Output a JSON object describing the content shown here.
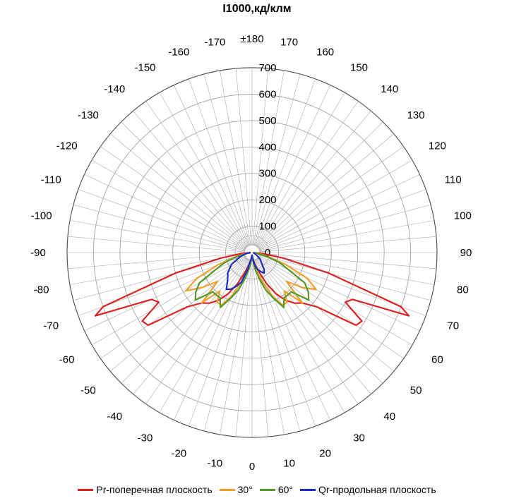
{
  "chart_data": {
    "type": "polar-line",
    "title": "I1000,кд/клм",
    "radial_axis": {
      "range": [
        0,
        700
      ],
      "ticks": [
        0,
        100,
        200,
        300,
        400,
        500,
        600,
        700
      ]
    },
    "angle_ticks": [
      "0",
      "10",
      "20",
      "30",
      "40",
      "50",
      "60",
      "70",
      "80",
      "90",
      "100",
      "110",
      "120",
      "130",
      "140",
      "150",
      "160",
      "170",
      "±180",
      "-170",
      "-160",
      "-150",
      "-140",
      "-130",
      "-120",
      "-110",
      "-100",
      "-90",
      "-80",
      "-70",
      "-60",
      "-50",
      "-40",
      "-30",
      "-20",
      "-10"
    ],
    "angle_tick_values": [
      0,
      10,
      20,
      30,
      40,
      50,
      60,
      70,
      80,
      90,
      100,
      110,
      120,
      130,
      140,
      150,
      160,
      170,
      180,
      -170,
      -160,
      -150,
      -140,
      -130,
      -120,
      -110,
      -100,
      -90,
      -80,
      -70,
      -60,
      -50,
      -40,
      -30,
      -20,
      -10
    ],
    "grid": true,
    "legend_position": "bottom",
    "series": [
      {
        "name": "Pr-поперечная плоскость",
        "color": "#dd2222",
        "angles": [
          -90,
          -85,
          -80,
          -75,
          -70,
          -68,
          -65,
          -62,
          -58,
          -55,
          -50,
          -45,
          -40,
          -35,
          -30,
          -25,
          -20,
          -15,
          -10,
          -5,
          0,
          5,
          10,
          15,
          20,
          25,
          30,
          35,
          40,
          45,
          50,
          55,
          58,
          62,
          65,
          68,
          70,
          75,
          80,
          85,
          90
        ],
        "values": [
          5,
          40,
          120,
          300,
          600,
          640,
          420,
          400,
          490,
          480,
          320,
          270,
          250,
          220,
          180,
          130,
          80,
          50,
          30,
          15,
          10,
          15,
          30,
          50,
          80,
          130,
          180,
          220,
          250,
          270,
          320,
          480,
          490,
          400,
          420,
          640,
          600,
          300,
          120,
          40,
          5
        ]
      },
      {
        "name": "30°",
        "color": "#f0a030",
        "angles": [
          -90,
          -80,
          -75,
          -70,
          -65,
          -60,
          -55,
          -50,
          -45,
          -40,
          -35,
          -30,
          -25,
          -20,
          -15,
          -10,
          -5,
          0,
          5,
          10,
          15,
          20,
          25,
          30,
          35,
          40,
          45,
          50,
          55,
          60,
          65,
          70,
          75,
          80,
          90
        ],
        "values": [
          5,
          30,
          70,
          140,
          230,
          290,
          230,
          170,
          270,
          190,
          230,
          230,
          180,
          120,
          80,
          50,
          20,
          10,
          20,
          50,
          80,
          120,
          180,
          230,
          230,
          190,
          270,
          170,
          230,
          280,
          230,
          140,
          70,
          30,
          5
        ]
      },
      {
        "name": "60°",
        "color": "#55992a",
        "angles": [
          -90,
          -80,
          -75,
          -70,
          -65,
          -60,
          -55,
          -50,
          -45,
          -40,
          -35,
          -30,
          -25,
          -20,
          -15,
          -10,
          -5,
          0,
          5,
          10,
          15,
          20,
          25,
          30,
          35,
          40,
          45,
          50,
          55,
          60,
          65,
          70,
          75,
          80,
          90
        ],
        "values": [
          5,
          20,
          60,
          110,
          150,
          230,
          260,
          280,
          210,
          210,
          210,
          240,
          190,
          150,
          100,
          60,
          25,
          10,
          25,
          60,
          100,
          150,
          190,
          240,
          210,
          210,
          210,
          280,
          260,
          230,
          150,
          110,
          60,
          20,
          5
        ]
      },
      {
        "name": "Qr-продольная плоскость",
        "color": "#1a2ec0",
        "angles": [
          -90,
          -80,
          -70,
          -60,
          -50,
          -45,
          -40,
          -35,
          -30,
          -25,
          -20,
          -15,
          -10,
          -5,
          0,
          5,
          10,
          15,
          20,
          25,
          30,
          35,
          40,
          50,
          60,
          70,
          80,
          90
        ],
        "values": [
          5,
          25,
          50,
          90,
          120,
          130,
          145,
          170,
          160,
          140,
          120,
          70,
          30,
          15,
          10,
          20,
          40,
          60,
          70,
          80,
          90,
          80,
          60,
          40,
          20,
          10,
          5,
          5
        ]
      }
    ]
  }
}
